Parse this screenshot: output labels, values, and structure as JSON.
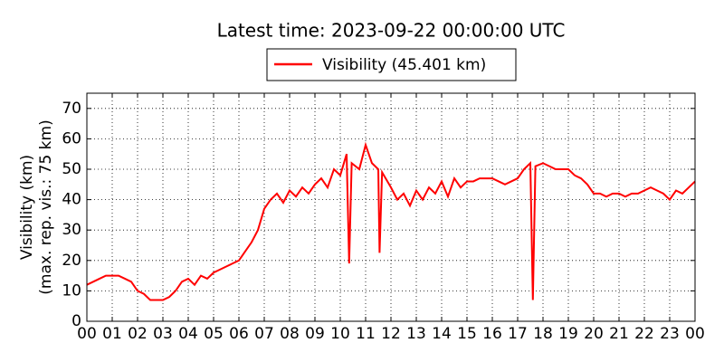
{
  "chart_data": {
    "type": "line",
    "title": "Latest time: 2023-09-22 00:00:00 UTC",
    "y_label": [
      "Visibility (km)",
      "(max. rep. vis.: 75 km)"
    ],
    "x": [
      0,
      0.25,
      0.5,
      0.75,
      1,
      1.25,
      1.5,
      1.75,
      2,
      2.25,
      2.5,
      2.75,
      3,
      3.25,
      3.5,
      3.75,
      4,
      4.25,
      4.5,
      4.75,
      5,
      5.25,
      5.5,
      5.75,
      6,
      6.25,
      6.5,
      6.75,
      7,
      7.25,
      7.5,
      7.75,
      8,
      8.25,
      8.5,
      8.75,
      9,
      9.25,
      9.5,
      9.75,
      10,
      10.25,
      10.35,
      10.45,
      10.75,
      11,
      11.25,
      11.5,
      11.55,
      11.65,
      12,
      12.25,
      12.5,
      12.75,
      13,
      13.25,
      13.5,
      13.75,
      14,
      14.25,
      14.5,
      14.75,
      15,
      15.25,
      15.5,
      15.75,
      16,
      16.25,
      16.5,
      16.75,
      17,
      17.25,
      17.5,
      17.6,
      17.7,
      18,
      18.25,
      18.5,
      18.75,
      19,
      19.25,
      19.5,
      19.75,
      20,
      20.25,
      20.5,
      20.75,
      21,
      21.25,
      21.5,
      21.75,
      22,
      22.25,
      22.5,
      22.75,
      23,
      23.25,
      23.5,
      23.75,
      24
    ],
    "series": [
      {
        "name": "Visibility (45.401 km)",
        "color": "#ff0000",
        "values": [
          12,
          13,
          14,
          15,
          15,
          15,
          14,
          13,
          10,
          9,
          7,
          7,
          7,
          8,
          10,
          13,
          14,
          12,
          15,
          14,
          16,
          17,
          18,
          19,
          20,
          23,
          26,
          30,
          37,
          40,
          42,
          39,
          43,
          41,
          44,
          42,
          45,
          47,
          44,
          50,
          48,
          55,
          19,
          52,
          50,
          58,
          52,
          50,
          22.5,
          49,
          44,
          40,
          42,
          38,
          43,
          40,
          44,
          42,
          46,
          41,
          47,
          44,
          46,
          46,
          47,
          47,
          47,
          46,
          45,
          46,
          47,
          50,
          52,
          7,
          51,
          52,
          51,
          50,
          50,
          50,
          48,
          47,
          45,
          42,
          42,
          41,
          42,
          42,
          41,
          42,
          42,
          43,
          44,
          43,
          42,
          40,
          43,
          42,
          44,
          46
        ]
      }
    ],
    "xlim": [
      0,
      24
    ],
    "xticks": [
      {
        "value": 0,
        "label": "00"
      },
      {
        "value": 1,
        "label": "01"
      },
      {
        "value": 2,
        "label": "02"
      },
      {
        "value": 3,
        "label": "03"
      },
      {
        "value": 4,
        "label": "04"
      },
      {
        "value": 5,
        "label": "05"
      },
      {
        "value": 6,
        "label": "06"
      },
      {
        "value": 7,
        "label": "07"
      },
      {
        "value": 8,
        "label": "08"
      },
      {
        "value": 9,
        "label": "09"
      },
      {
        "value": 10,
        "label": "10"
      },
      {
        "value": 11,
        "label": "11"
      },
      {
        "value": 12,
        "label": "12"
      },
      {
        "value": 13,
        "label": "13"
      },
      {
        "value": 14,
        "label": "14"
      },
      {
        "value": 15,
        "label": "15"
      },
      {
        "value": 16,
        "label": "16"
      },
      {
        "value": 17,
        "label": "17"
      },
      {
        "value": 18,
        "label": "18"
      },
      {
        "value": 19,
        "label": "19"
      },
      {
        "value": 20,
        "label": "20"
      },
      {
        "value": 21,
        "label": "21"
      },
      {
        "value": 22,
        "label": "22"
      },
      {
        "value": 23,
        "label": "23"
      },
      {
        "value": 24,
        "label": "00"
      }
    ],
    "ylim": [
      0,
      75
    ],
    "yticks": [
      0,
      10,
      20,
      30,
      40,
      50,
      60,
      70
    ],
    "grid": true,
    "legend": "top"
  }
}
